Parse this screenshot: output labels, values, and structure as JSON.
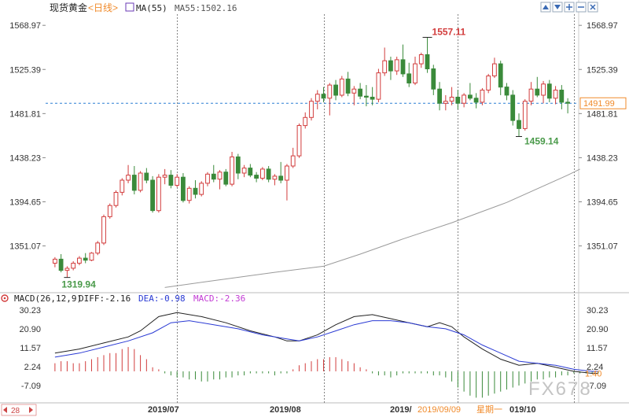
{
  "chart_data": [
    {
      "type": "candlestick",
      "instrument": "现货黄金",
      "period": "<日线>",
      "ma_label": "MA(55)",
      "ma_value_text": "MA55:1502.16",
      "y_ticks": [
        1568.97,
        1525.39,
        1481.81,
        1438.23,
        1394.65,
        1351.07
      ],
      "y_range": [
        1308,
        1580
      ],
      "current_price": "1491.99",
      "current_price_value": 1491.99,
      "high_label": "1557.11",
      "high_value": 1557.11,
      "low_label": "1319.94",
      "low_value": 1319.94,
      "local_low_label": "1459.14",
      "local_low_value": 1459.14,
      "x_labels": [
        "2019/07",
        "2019/08",
        "2019/",
        "2019/09/09",
        "星期一",
        "019/10"
      ],
      "candles": [
        [
          1334,
          1340,
          1330,
          1338
        ],
        [
          1338,
          1343,
          1325,
          1327
        ],
        [
          1327,
          1331,
          1319.94,
          1329
        ],
        [
          1329,
          1336,
          1327,
          1334
        ],
        [
          1334,
          1341,
          1332,
          1339
        ],
        [
          1339,
          1344,
          1334,
          1337
        ],
        [
          1337,
          1345,
          1336,
          1344
        ],
        [
          1344,
          1356,
          1342,
          1354
        ],
        [
          1354,
          1382,
          1352,
          1380
        ],
        [
          1380,
          1393,
          1378,
          1391
        ],
        [
          1391,
          1406,
          1389,
          1404
        ],
        [
          1404,
          1418,
          1401,
          1416
        ],
        [
          1416,
          1431,
          1413,
          1421
        ],
        [
          1421,
          1430,
          1402,
          1406
        ],
        [
          1406,
          1425,
          1404,
          1423
        ],
        [
          1423,
          1428,
          1413,
          1416
        ],
        [
          1416,
          1420,
          1384,
          1386
        ],
        [
          1386,
          1422,
          1384,
          1419
        ],
        [
          1419,
          1427,
          1412,
          1421
        ],
        [
          1421,
          1426,
          1408,
          1411
        ],
        [
          1411,
          1422,
          1409,
          1419
        ],
        [
          1419,
          1423,
          1394,
          1396
        ],
        [
          1396,
          1410,
          1393,
          1408
        ],
        [
          1408,
          1416,
          1398,
          1402
        ],
        [
          1402,
          1415,
          1400,
          1413
        ],
        [
          1413,
          1424,
          1410,
          1422
        ],
        [
          1422,
          1431,
          1414,
          1417
        ],
        [
          1417,
          1426,
          1407,
          1424
        ],
        [
          1424,
          1427,
          1410,
          1412
        ],
        [
          1412,
          1444,
          1410,
          1439
        ],
        [
          1439,
          1442,
          1417,
          1423
        ],
        [
          1423,
          1431,
          1419,
          1428
        ],
        [
          1428,
          1432,
          1419,
          1421
        ],
        [
          1421,
          1424,
          1414,
          1418
        ],
        [
          1418,
          1429,
          1416,
          1427
        ],
        [
          1427,
          1430,
          1414,
          1417
        ],
        [
          1417,
          1422,
          1411,
          1420
        ],
        [
          1420,
          1434,
          1413,
          1416
        ],
        [
          1416,
          1432,
          1396,
          1430
        ],
        [
          1430,
          1448,
          1428,
          1440
        ],
        [
          1440,
          1472,
          1438,
          1470
        ],
        [
          1470,
          1483,
          1467,
          1478
        ],
        [
          1478,
          1497,
          1475,
          1494
        ],
        [
          1494,
          1505,
          1486,
          1501
        ],
        [
          1501,
          1508,
          1493,
          1497
        ],
        [
          1497,
          1512,
          1480,
          1510
        ],
        [
          1510,
          1515,
          1495,
          1500
        ],
        [
          1500,
          1519,
          1498,
          1516
        ],
        [
          1516,
          1523,
          1499,
          1502
        ],
        [
          1502,
          1509,
          1490,
          1506
        ],
        [
          1506,
          1512,
          1496,
          1499
        ],
        [
          1499,
          1510,
          1489,
          1498
        ],
        [
          1498,
          1508,
          1490,
          1496
        ],
        [
          1496,
          1526,
          1493,
          1522
        ],
        [
          1522,
          1547,
          1519,
          1534
        ],
        [
          1534,
          1538,
          1515,
          1524
        ],
        [
          1524,
          1538,
          1520,
          1535
        ],
        [
          1535,
          1550,
          1518,
          1521
        ],
        [
          1521,
          1532,
          1508,
          1512
        ],
        [
          1512,
          1538,
          1510,
          1531
        ],
        [
          1531,
          1542,
          1527,
          1540
        ],
        [
          1540,
          1557.11,
          1522,
          1526
        ],
        [
          1526,
          1530,
          1500,
          1506
        ],
        [
          1506,
          1513,
          1485,
          1492
        ],
        [
          1492,
          1500,
          1485,
          1494
        ],
        [
          1494,
          1508,
          1490,
          1498
        ],
        [
          1498,
          1505,
          1486,
          1492
        ],
        [
          1492,
          1502,
          1488,
          1500
        ],
        [
          1500,
          1512,
          1495,
          1497
        ],
        [
          1497,
          1502,
          1487,
          1493
        ],
        [
          1493,
          1507,
          1490,
          1505
        ],
        [
          1505,
          1521,
          1502,
          1519
        ],
        [
          1519,
          1537,
          1517,
          1531
        ],
        [
          1531,
          1534,
          1500,
          1508
        ],
        [
          1508,
          1512,
          1495,
          1500
        ],
        [
          1500,
          1505,
          1470,
          1475
        ],
        [
          1475,
          1482,
          1459.14,
          1467
        ],
        [
          1467,
          1496,
          1465,
          1494
        ],
        [
          1494,
          1513,
          1490,
          1506
        ],
        [
          1506,
          1518,
          1498,
          1500
        ],
        [
          1500,
          1514,
          1492,
          1511
        ],
        [
          1511,
          1515,
          1493,
          1497
        ],
        [
          1497,
          1509,
          1491,
          1505
        ],
        [
          1505,
          1510,
          1486,
          1493
        ],
        [
          1493,
          1497,
          1482,
          1491.99
        ]
      ],
      "ma55": [
        [
          18,
          1310
        ],
        [
          25,
          1316
        ],
        [
          36,
          1325
        ],
        [
          44,
          1331
        ],
        [
          50,
          1343
        ],
        [
          57,
          1358
        ],
        [
          65,
          1374
        ],
        [
          74,
          1394
        ],
        [
          84,
          1421
        ],
        [
          86,
          1427
        ]
      ],
      "macd": {
        "label": "MACD(26,12,9)",
        "diff_text": "DIFF:-2.16",
        "dea_text": "DEA:-0.98",
        "macd_text": "MACD:-2.36",
        "y_ticks": [
          30.23,
          20.9,
          11.57,
          2.24,
          -7.09
        ],
        "y_tick_labels": [
          "30.23",
          "20.90",
          "11.57",
          "2.24",
          "-7.09"
        ],
        "y_range": [
          -14,
          33
        ],
        "last_value": "1.40",
        "diff": [
          [
            0,
            9
          ],
          [
            4,
            11
          ],
          [
            8,
            14
          ],
          [
            12,
            17
          ],
          [
            14,
            20
          ],
          [
            17,
            27
          ],
          [
            20,
            29
          ],
          [
            24,
            27
          ],
          [
            28,
            24
          ],
          [
            32,
            20
          ],
          [
            36,
            17
          ],
          [
            38,
            15
          ],
          [
            40,
            15
          ],
          [
            43,
            18
          ],
          [
            46,
            23
          ],
          [
            49,
            27
          ],
          [
            52,
            28
          ],
          [
            55,
            26
          ],
          [
            58,
            24
          ],
          [
            61,
            22
          ],
          [
            63,
            24
          ],
          [
            65,
            22
          ],
          [
            67,
            17
          ],
          [
            70,
            11
          ],
          [
            73,
            6
          ],
          [
            76,
            3
          ],
          [
            79,
            4
          ],
          [
            82,
            2
          ],
          [
            85,
            0
          ],
          [
            88,
            -1
          ],
          [
            89,
            -1
          ]
        ],
        "dea": [
          [
            0,
            7
          ],
          [
            4,
            9
          ],
          [
            8,
            12
          ],
          [
            12,
            15
          ],
          [
            16,
            19
          ],
          [
            19,
            24
          ],
          [
            22,
            25
          ],
          [
            26,
            23
          ],
          [
            30,
            21
          ],
          [
            34,
            18
          ],
          [
            38,
            16
          ],
          [
            40,
            15
          ],
          [
            43,
            17
          ],
          [
            46,
            20
          ],
          [
            49,
            23
          ],
          [
            52,
            25
          ],
          [
            55,
            25
          ],
          [
            58,
            24
          ],
          [
            61,
            22
          ],
          [
            64,
            21
          ],
          [
            67,
            18
          ],
          [
            70,
            13
          ],
          [
            73,
            9
          ],
          [
            76,
            5
          ],
          [
            79,
            4
          ],
          [
            82,
            3
          ],
          [
            85,
            1
          ],
          [
            88,
            0
          ],
          [
            89,
            0
          ]
        ],
        "hist": [
          [
            0,
            4
          ],
          [
            1,
            5
          ],
          [
            2,
            5
          ],
          [
            3,
            4
          ],
          [
            4,
            4
          ],
          [
            5,
            5
          ],
          [
            6,
            6
          ],
          [
            7,
            7
          ],
          [
            8,
            8
          ],
          [
            9,
            9
          ],
          [
            10,
            9
          ],
          [
            11,
            11
          ],
          [
            12,
            12
          ],
          [
            13,
            11
          ],
          [
            14,
            8
          ],
          [
            15,
            6
          ],
          [
            16,
            2
          ],
          [
            17,
            1
          ],
          [
            18,
            -1
          ],
          [
            19,
            -2
          ],
          [
            20,
            -3
          ],
          [
            21,
            -3
          ],
          [
            22,
            -4
          ],
          [
            23,
            -4
          ],
          [
            24,
            -5
          ],
          [
            25,
            -5
          ],
          [
            26,
            -4
          ],
          [
            27,
            -4
          ],
          [
            28,
            -3
          ],
          [
            29,
            -3
          ],
          [
            30,
            -2
          ],
          [
            31,
            -2
          ],
          [
            32,
            -1
          ],
          [
            33,
            -1
          ],
          [
            34,
            -1
          ],
          [
            35,
            -1
          ],
          [
            36,
            -2
          ],
          [
            37,
            -1
          ],
          [
            38,
            -1
          ],
          [
            39,
            1
          ],
          [
            40,
            3
          ],
          [
            41,
            4
          ],
          [
            42,
            5
          ],
          [
            43,
            6
          ],
          [
            44,
            6
          ],
          [
            45,
            7
          ],
          [
            46,
            7
          ],
          [
            47,
            6
          ],
          [
            48,
            5
          ],
          [
            49,
            4
          ],
          [
            50,
            2
          ],
          [
            51,
            1
          ],
          [
            52,
            -1
          ],
          [
            53,
            -2
          ],
          [
            54,
            -2
          ],
          [
            55,
            -3
          ],
          [
            56,
            -2
          ],
          [
            57,
            -1
          ],
          [
            58,
            -1
          ],
          [
            59,
            -1
          ],
          [
            60,
            -1
          ],
          [
            61,
            -1
          ],
          [
            62,
            -2
          ],
          [
            63,
            -2
          ],
          [
            64,
            -3
          ],
          [
            65,
            -5
          ],
          [
            66,
            -8
          ],
          [
            67,
            -10
          ],
          [
            68,
            -12
          ],
          [
            69,
            -13
          ],
          [
            70,
            -13
          ],
          [
            71,
            -12
          ],
          [
            72,
            -11
          ],
          [
            73,
            -10
          ],
          [
            74,
            -9
          ],
          [
            75,
            -8
          ],
          [
            76,
            -7
          ],
          [
            77,
            -6
          ],
          [
            78,
            -5
          ],
          [
            79,
            -4
          ],
          [
            80,
            -4
          ],
          [
            81,
            -3
          ],
          [
            82,
            -3
          ],
          [
            83,
            -2
          ],
          [
            84,
            -2
          ],
          [
            85,
            -1
          ],
          [
            86,
            -1
          ],
          [
            87,
            -1
          ],
          [
            88,
            -1
          ],
          [
            89,
            -1
          ]
        ]
      }
    }
  ],
  "toolbar": {
    "icons": [
      "up-arrow-icon",
      "down-arrow-icon",
      "zoom-in-icon",
      "zoom-out-icon",
      "close-icon"
    ]
  },
  "colors": {
    "up": "#d23c3c",
    "down": "#3a8a3a",
    "high_label": "#d23c3c",
    "low_label": "#4a9a4a",
    "price_line": "#2a7fd4",
    "price_box": "#f08a2a",
    "ma": "#9a9a9a",
    "diff": "#222222",
    "dea": "#2a3ad4",
    "macd_text": "#c23ad4"
  },
  "watermark": "FX678",
  "scale_marker": "28"
}
